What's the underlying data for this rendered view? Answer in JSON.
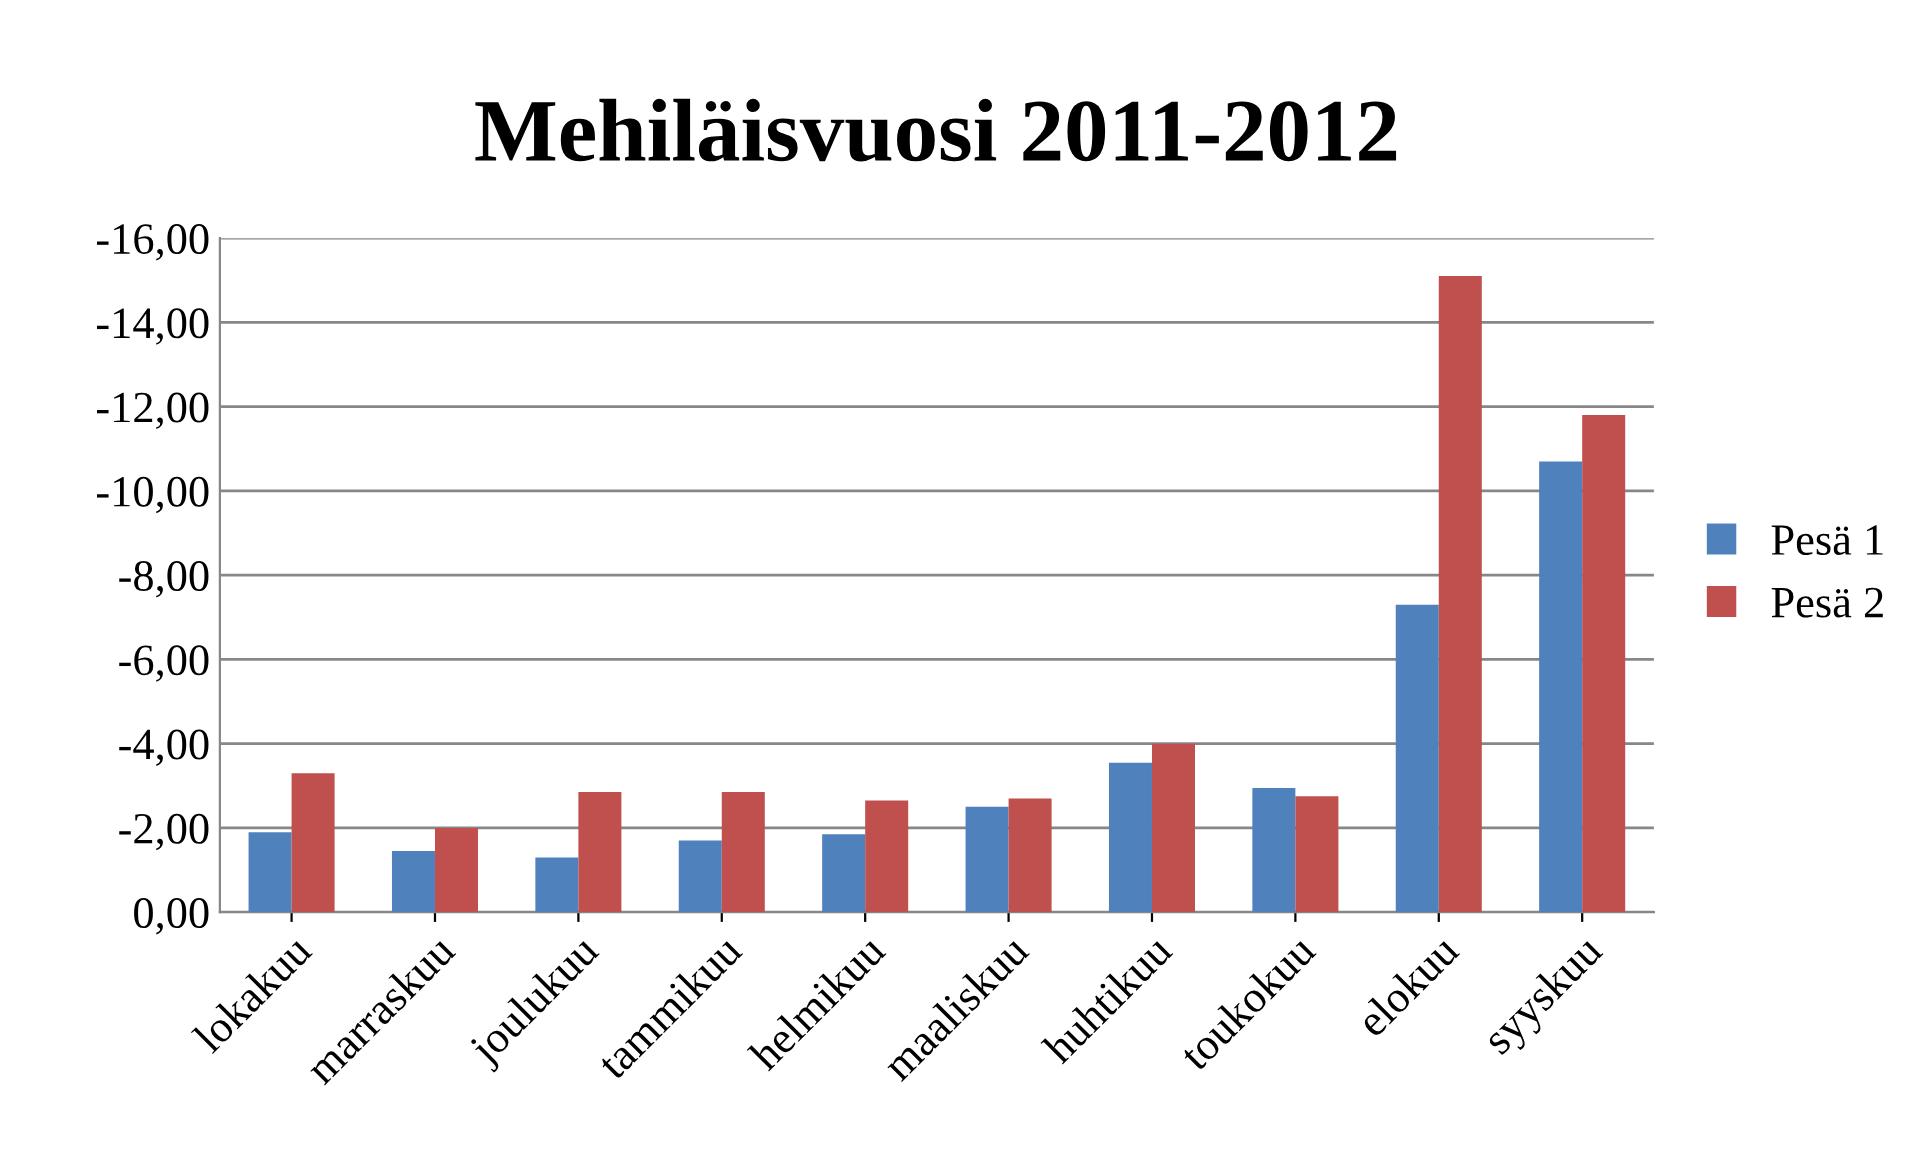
{
  "chart_data": {
    "type": "bar",
    "title": "Mehiläisvuosi 2011-2012",
    "categories": [
      "lokakuu",
      "marraskuu",
      "joulukuu",
      "tammikuu",
      "helmikuu",
      "maaliskuu",
      "huhtikuu",
      "toukokuu",
      "elokuu",
      "syyskuu"
    ],
    "series": [
      {
        "name": "Pesä 1",
        "color": "#4f81bd",
        "values": [
          -1.9,
          -1.45,
          -1.3,
          -1.7,
          -1.85,
          -2.5,
          -3.55,
          -2.95,
          -7.3,
          -10.7
        ]
      },
      {
        "name": "Pesä 2",
        "color": "#c0504d",
        "values": [
          -3.3,
          -2.0,
          -2.85,
          -2.85,
          -2.65,
          -2.7,
          -4.0,
          -2.75,
          -15.1,
          -11.8
        ]
      }
    ],
    "ylim": [
      0,
      -16
    ],
    "yticks": [
      {
        "value": 0,
        "label": "0,00"
      },
      {
        "value": -2,
        "label": "-2,00"
      },
      {
        "value": -4,
        "label": "-4,00"
      },
      {
        "value": -6,
        "label": "-6,00"
      },
      {
        "value": -8,
        "label": "-8,00"
      },
      {
        "value": -10,
        "label": "-10,00"
      },
      {
        "value": -12,
        "label": "-12,00"
      },
      {
        "value": -14,
        "label": "-14,00"
      },
      {
        "value": -16,
        "label": "-16,00"
      }
    ],
    "grid": "y",
    "legend": "right"
  }
}
